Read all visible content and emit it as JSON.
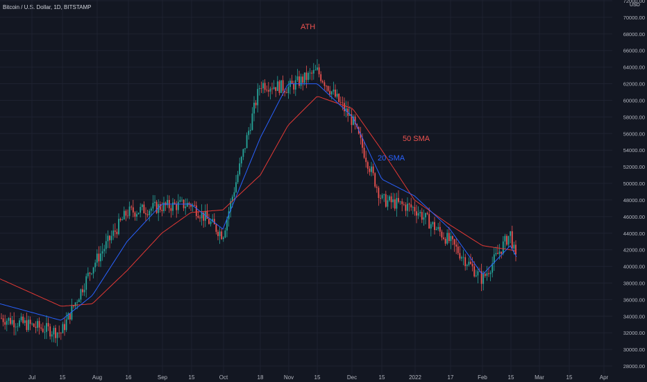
{
  "header": {
    "symbol_title": "Bitcoin / U.S. Dollar, 1D, BITSTAMP",
    "currency": "USD"
  },
  "colors": {
    "background": "#131722",
    "up": "#26a69a",
    "down": "#ef5350",
    "sma20": "#2962ff",
    "sma50": "#e53935",
    "grid": "#1e2230"
  },
  "annotations": {
    "ath": "ATH",
    "sma50": "50 SMA",
    "sma20": "20 SMA"
  },
  "chart_data": {
    "type": "line",
    "title": "Bitcoin / U.S. Dollar, 1D, BITSTAMP",
    "xlabel": "",
    "ylabel": "USD",
    "ylim": [
      27000,
      72000
    ],
    "grid": true,
    "y_ticks": [
      "28000.00",
      "30000.00",
      "32000.00",
      "34000.00",
      "36000.00",
      "38000.00",
      "40000.00",
      "42000.00",
      "44000.00",
      "46000.00",
      "48000.00",
      "50000.00",
      "52000.00",
      "54000.00",
      "56000.00",
      "58000.00",
      "60000.00",
      "62000.00",
      "64000.00",
      "66000.00",
      "68000.00",
      "70000.00",
      "72000.00"
    ],
    "x_ticks": [
      "Jul",
      "15",
      "Aug",
      "16",
      "Sep",
      "15",
      "Oct",
      "18",
      "Nov",
      "15",
      "Dec",
      "15",
      "2022",
      "17",
      "Feb",
      "15",
      "Mar",
      "15",
      "Apr"
    ],
    "x": [
      "Jul 1",
      "Jul 15",
      "Aug 1",
      "Aug 16",
      "Sep 1",
      "Sep 15",
      "Oct 1",
      "Oct 18",
      "Nov 1",
      "Nov 15",
      "Dec 1",
      "Dec 15",
      "Jan 1",
      "Jan 17",
      "Feb 1",
      "Feb 15",
      "Feb 20"
    ],
    "series": [
      {
        "name": "Price",
        "values": [
          33800,
          32000,
          40000,
          46500,
          47200,
          47500,
          43800,
          62000,
          61500,
          63500,
          57500,
          48000,
          47000,
          43000,
          38400,
          44000,
          40000
        ]
      },
      {
        "name": "20 SMA",
        "values": [
          35500,
          33500,
          36500,
          43000,
          47500,
          47500,
          44500,
          55500,
          62000,
          62000,
          58000,
          50500,
          48500,
          44500,
          39000,
          42500,
          41000
        ]
      },
      {
        "name": "50 SMA",
        "values": [
          38500,
          35200,
          35500,
          39500,
          44000,
          46500,
          46800,
          51000,
          57000,
          60500,
          59000,
          54000,
          48000,
          45000,
          42500,
          42000,
          41800
        ]
      }
    ],
    "annotations": [
      {
        "text": "ATH",
        "x": "Nov 10",
        "y": 69000
      },
      {
        "text": "50 SMA",
        "x": "Dec 20",
        "y": 55500
      },
      {
        "text": "20 SMA",
        "x": "Dec 10",
        "y": 52500
      }
    ]
  }
}
